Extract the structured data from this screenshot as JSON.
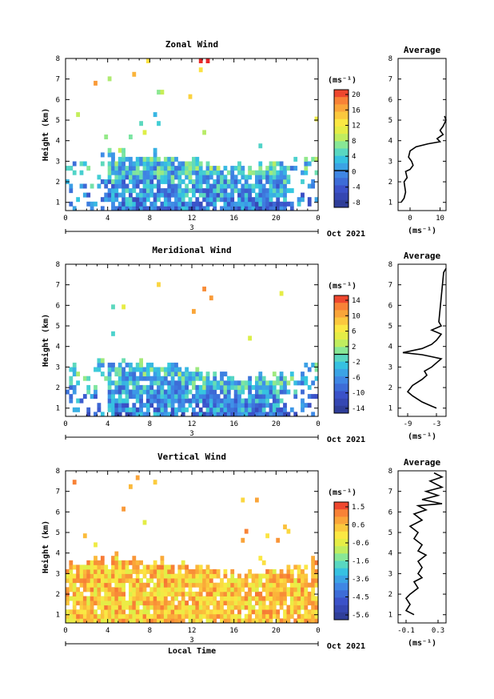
{
  "chart_data": [
    {
      "type": "heatmap",
      "title": "Zonal Wind",
      "ylabel": "Height (km)",
      "xlabel": "",
      "x_ticks": [
        "0",
        "4",
        "8",
        "12",
        "16",
        "20",
        "0"
      ],
      "xlim": [
        0,
        24
      ],
      "ylim": [
        0.6,
        8
      ],
      "y_ticks": [
        "1",
        "2",
        "3",
        "4",
        "5",
        "6",
        "7",
        "8"
      ],
      "date_day": "3",
      "date_label": "Oct 2021",
      "unit_label": "(ms⁻¹)",
      "colorbar_ticks": [
        "20",
        "16",
        "12",
        "8",
        "4",
        "0",
        "-4",
        "-8"
      ],
      "vmin": -10,
      "vmax": 22,
      "zero_line": 0,
      "region": {
        "top_base": 3.1,
        "top_amp": 0.35,
        "noise": 0.6,
        "bias": -2
      },
      "average": {
        "title": "Average",
        "x_ticks": [
          "0",
          "10"
        ],
        "xlim": [
          -4,
          12
        ],
        "unit_label": "(ms⁻¹)",
        "profile": [
          [
            -3,
            1.0
          ],
          [
            -2,
            1.2
          ],
          [
            -1.5,
            1.5
          ],
          [
            -2,
            2.0
          ],
          [
            -1,
            2.2
          ],
          [
            -1.5,
            2.5
          ],
          [
            0,
            2.6
          ],
          [
            1,
            2.8
          ],
          [
            0.5,
            3.0
          ],
          [
            -0.5,
            3.2
          ],
          [
            0,
            3.5
          ],
          [
            2,
            3.7
          ],
          [
            6,
            3.85
          ],
          [
            10,
            3.95
          ],
          [
            9,
            4.1
          ],
          [
            10,
            4.2
          ],
          [
            11,
            4.3
          ],
          [
            10,
            4.5
          ],
          [
            11,
            4.7
          ],
          [
            12,
            5.0
          ],
          [
            11.5,
            5.2
          ]
        ]
      }
    },
    {
      "type": "heatmap",
      "title": "Meridional Wind",
      "ylabel": "Height (km)",
      "xlabel": "",
      "x_ticks": [
        "0",
        "4",
        "8",
        "12",
        "16",
        "20",
        "0"
      ],
      "xlim": [
        0,
        24
      ],
      "ylim": [
        0.6,
        8
      ],
      "y_ticks": [
        "1",
        "2",
        "3",
        "4",
        "5",
        "6",
        "7",
        "8"
      ],
      "date_day": "3",
      "date_label": "Oct 2021",
      "unit_label": "(ms⁻¹)",
      "colorbar_ticks": [
        "14",
        "10",
        "6",
        "2",
        "-2",
        "-6",
        "-10",
        "-14"
      ],
      "vmin": -16,
      "vmax": 16,
      "zero_line": 0,
      "region": {
        "top_base": 2.9,
        "top_amp": 0.4,
        "noise": 0.6,
        "bias": -8
      },
      "average": {
        "title": "Average",
        "x_ticks": [
          "-9",
          "-3"
        ],
        "xlim": [
          -11,
          -1
        ],
        "unit_label": "(ms⁻¹)",
        "profile": [
          [
            -3,
            1.0
          ],
          [
            -4,
            1.1
          ],
          [
            -6,
            1.3
          ],
          [
            -8,
            1.6
          ],
          [
            -9,
            1.8
          ],
          [
            -8,
            2.1
          ],
          [
            -6,
            2.4
          ],
          [
            -5,
            2.6
          ],
          [
            -5.5,
            2.8
          ],
          [
            -4,
            3.0
          ],
          [
            -3,
            3.2
          ],
          [
            -2,
            3.4
          ],
          [
            -4,
            3.5
          ],
          [
            -6,
            3.6
          ],
          [
            -10,
            3.7
          ],
          [
            -6,
            3.9
          ],
          [
            -4,
            4.1
          ],
          [
            -3,
            4.3
          ],
          [
            -2,
            4.6
          ],
          [
            -4,
            4.8
          ],
          [
            -2,
            5.0
          ],
          [
            -2.5,
            5.2
          ],
          [
            -1.5,
            7.6
          ],
          [
            -1,
            7.8
          ]
        ]
      }
    },
    {
      "type": "heatmap",
      "title": "Vertical Wind",
      "ylabel": "Height (km)",
      "xlabel": "Local Time",
      "x_ticks": [
        "0",
        "4",
        "8",
        "12",
        "16",
        "20",
        "0"
      ],
      "xlim": [
        0,
        24
      ],
      "ylim": [
        0.6,
        8
      ],
      "y_ticks": [
        "1",
        "2",
        "3",
        "4",
        "5",
        "6",
        "7",
        "8"
      ],
      "date_day": "3",
      "date_label": "Oct 2021",
      "unit_label": "(ms⁻¹)",
      "colorbar_ticks": [
        "1.5",
        "0.6",
        "-0.6",
        "-1.6",
        "-3.6",
        "-4.5",
        "-5.6"
      ],
      "vmin": -6,
      "vmax": 2,
      "zero_line": null,
      "region": {
        "top_base": 3.4,
        "top_amp": 0.35,
        "noise": 0.5,
        "bias": 0.2
      },
      "average": {
        "title": "Average",
        "x_ticks": [
          "-0.1",
          "0.3"
        ],
        "xlim": [
          -0.2,
          0.4
        ],
        "unit_label": "(ms⁻¹)",
        "profile": [
          [
            0.0,
            1.0
          ],
          [
            -0.1,
            1.2
          ],
          [
            -0.05,
            1.5
          ],
          [
            -0.1,
            1.8
          ],
          [
            -0.05,
            2.0
          ],
          [
            0.05,
            2.3
          ],
          [
            0.0,
            2.6
          ],
          [
            0.1,
            2.8
          ],
          [
            0.05,
            3.0
          ],
          [
            0.1,
            3.3
          ],
          [
            0.05,
            3.6
          ],
          [
            0.15,
            3.9
          ],
          [
            0.05,
            4.1
          ],
          [
            0.1,
            4.4
          ],
          [
            0.0,
            4.7
          ],
          [
            0.05,
            5.0
          ],
          [
            -0.05,
            5.3
          ],
          [
            0.1,
            5.6
          ],
          [
            0.0,
            5.9
          ],
          [
            0.15,
            6.1
          ],
          [
            0.05,
            6.3
          ],
          [
            0.35,
            6.4
          ],
          [
            0.1,
            6.6
          ],
          [
            0.3,
            6.8
          ],
          [
            0.15,
            7.0
          ],
          [
            0.35,
            7.2
          ],
          [
            0.2,
            7.5
          ],
          [
            0.35,
            7.7
          ],
          [
            0.25,
            7.9
          ]
        ]
      }
    }
  ]
}
